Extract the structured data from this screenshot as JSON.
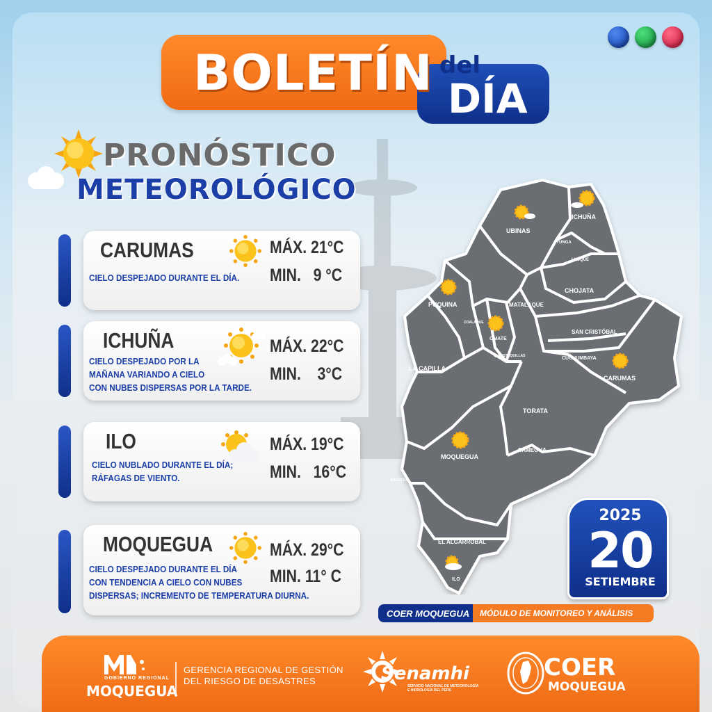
{
  "header": {
    "boletin": "BOLETÍN",
    "del": "del",
    "dia": "DÍA"
  },
  "title": {
    "line1": "PRONÓSTICO",
    "line2": "METEOROLÓGICO"
  },
  "forecasts": [
    {
      "city": "CARUMAS",
      "desc": [
        "CIELO DESPEJADO DURANTE EL DÍA."
      ],
      "max": "MÁX. 21°C",
      "min": "MIN.   9 °C",
      "icon": "sun-icon"
    },
    {
      "city": "ICHUÑA",
      "desc": [
        "CIELO DESPEJADO POR LA",
        "MAÑANA VARIANDO A CIELO",
        "CON NUBES DISPERSAS POR LA TARDE."
      ],
      "max": "MÁX. 22°C",
      "min": "MIN.    3°C",
      "icon": "sun-cloud-icon"
    },
    {
      "city": "ILO",
      "desc": [
        "CIELO NUBLADO DURANTE EL DÍA;",
        "RÁFAGAS DE VIENTO."
      ],
      "max": "MÁX. 19°C",
      "min": "MIN.   16°C",
      "icon": "cloud-sun-icon"
    },
    {
      "city": "MOQUEGUA",
      "desc": [
        "CIELO DESPEJADO DURANTE EL DÍA",
        "CON TENDENCIA A CIELO CON NUBES",
        "DISPERSAS; INCREMENTO DE TEMPERATURA DIURNA."
      ],
      "max": "MÁX. 29°C",
      "min": "MIN. 11° C",
      "icon": "sun-icon"
    }
  ],
  "map_labels": {
    "ubinas": "UBINAS",
    "ichuna": "ICHUÑA",
    "yunga": "YUNGA",
    "lloque": "LLOQUE",
    "chojata": "CHOJATA",
    "matalaque": "MATALAQUE",
    "puquina": "PUQUINA",
    "coalaque": "COALAQUE",
    "omate": "OMATE",
    "quinistaquillas": "QUINISTAQUILLAS",
    "san_cristobal": "SAN CRISTÓBAL",
    "cuchumbaya": "CUCHUMBAYA",
    "carumas": "CARUMAS",
    "la_capilla": "LA CAPILLA",
    "torata": "TORATA",
    "moquegua": "MOQUEGUA",
    "samegua": "SAMEGUA",
    "pacocha": "PACOCHA",
    "el_algarrobal": "EL ALGARROBAL",
    "ilo": "ILO"
  },
  "date": {
    "year": "2025",
    "day": "20",
    "month": "SETIEMBRE"
  },
  "ribbon": {
    "left": "COER MOQUEGUA",
    "right": "MÓDULO DE MONITOREO Y ANÁLISIS"
  },
  "footer": {
    "gr_small": "GOBIERNO REGIONAL",
    "gr_name": "MOQUEGUA",
    "gerencia_1": "GERENCIA REGIONAL DE GESTIÓN",
    "gerencia_2": "DEL RIESGO DE DESASTRES",
    "senamhi": "Senamhi",
    "senamhi_sub_1": "SERVICIO NACIONAL DE METEOROLOGÍA",
    "senamhi_sub_2": "E HIDROLOGÍA DEL PERÚ",
    "coer": "COER",
    "coer_sub": "MOQUEGUA"
  },
  "colors": {
    "orange": "#f57a22",
    "navy": "#0f2f8a",
    "map_gray": "#6b6e73"
  }
}
